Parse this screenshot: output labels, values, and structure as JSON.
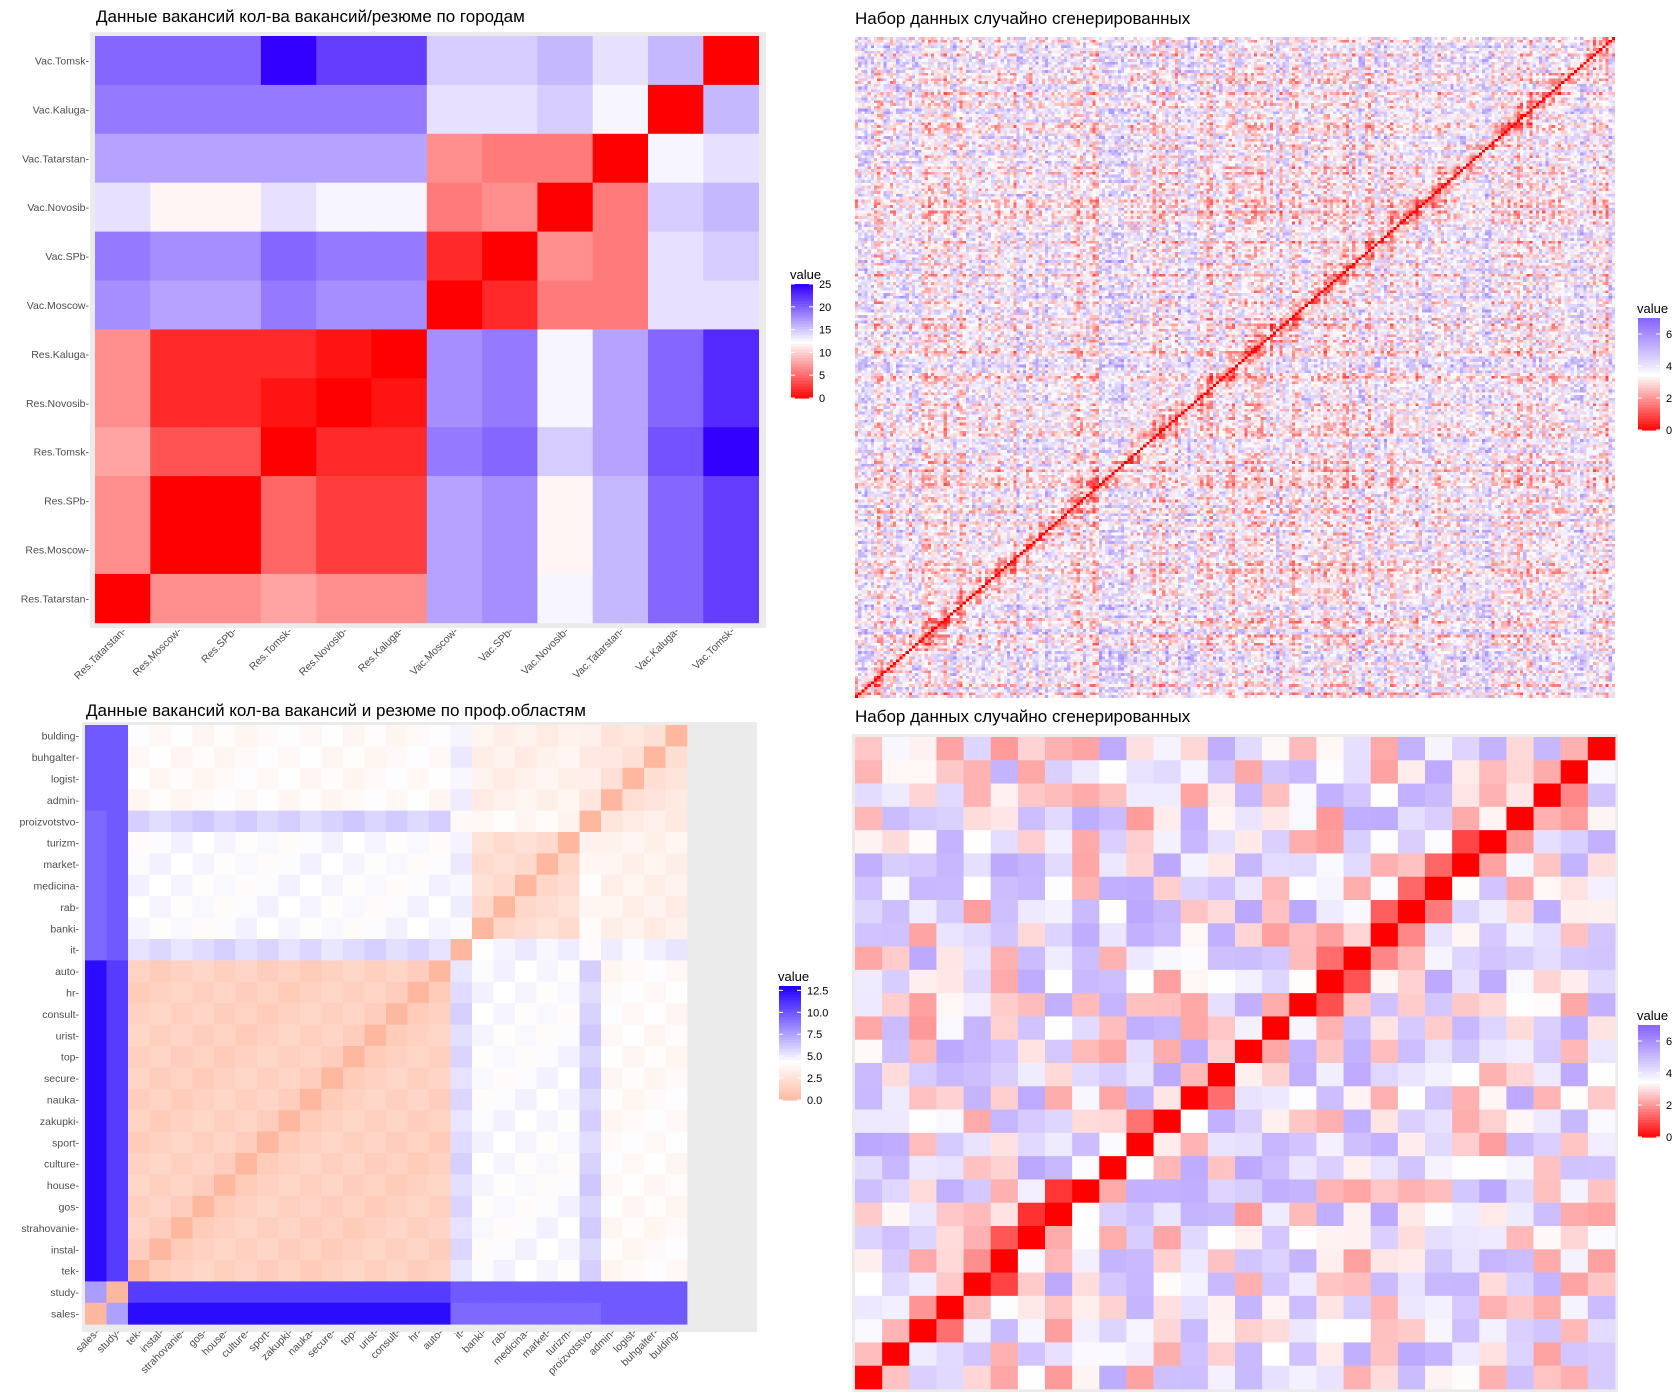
{
  "chart_data": [
    {
      "id": "cities",
      "type": "heatmap",
      "title": "Данные вакансий кол-ва вакансий/резюме по городам",
      "x_labels": [
        "Res.Tatarstan",
        "Res.Moscow",
        "Res.SPb",
        "Res.Tomsk",
        "Res.Novosib",
        "Res.Kaluga",
        "Vac.Moscow",
        "Vac.SPb",
        "Vac.Novosib",
        "Vac.Tatarstan",
        "Vac.Kaluga",
        "Vac.Tomsk"
      ],
      "y_labels_top_to_bottom": [
        "Vac.Tomsk",
        "Vac.Kaluga",
        "Vac.Tatarstan",
        "Vac.Novosib",
        "Vac.SPb",
        "Vac.Moscow",
        "Res.Kaluga",
        "Res.Novosib",
        "Res.Tomsk",
        "Res.SPb",
        "Res.Moscow",
        "Res.Tatarstan"
      ],
      "values": [
        [
          20,
          20,
          20,
          25,
          22,
          22,
          15,
          15,
          16,
          14,
          16,
          0
        ],
        [
          19,
          19,
          19,
          19,
          19,
          19,
          14,
          14,
          15,
          13,
          0,
          16
        ],
        [
          17,
          17,
          17,
          17,
          17,
          17,
          7,
          6,
          6,
          0,
          13,
          14
        ],
        [
          14,
          12,
          12,
          14,
          13,
          13,
          6,
          7,
          0,
          6,
          15,
          16
        ],
        [
          19,
          18,
          18,
          20,
          19,
          19,
          2,
          0,
          7,
          6,
          14,
          15
        ],
        [
          18,
          17,
          17,
          19,
          18,
          18,
          0,
          2,
          6,
          6,
          14,
          14
        ],
        [
          7,
          2,
          2,
          2,
          1,
          0,
          18,
          19,
          13,
          17,
          20,
          23
        ],
        [
          7,
          2,
          2,
          1,
          0,
          1,
          18,
          19,
          13,
          17,
          20,
          23
        ],
        [
          8,
          4,
          4,
          0,
          2,
          2,
          19,
          20,
          15,
          17,
          21,
          25
        ],
        [
          7,
          0,
          0,
          5,
          3,
          3,
          17,
          18,
          12,
          16,
          20,
          22
        ],
        [
          7,
          0,
          0,
          5,
          3,
          3,
          17,
          18,
          12,
          16,
          20,
          22
        ],
        [
          0,
          7,
          7,
          8,
          7,
          7,
          17,
          18,
          13,
          16,
          20,
          22
        ]
      ],
      "legend": {
        "title": "value",
        "ticks": [
          "25",
          "20",
          "15",
          "10",
          "5",
          "0"
        ],
        "tick_values": [
          25,
          20,
          15,
          10,
          5,
          0
        ],
        "min": 0,
        "max": 25,
        "mid": 12.5,
        "low": "#ff0000",
        "mid_color": "#ffffff",
        "high": "#3300ff"
      }
    },
    {
      "id": "random-large",
      "type": "heatmap",
      "title": "Набор данных случайно сгенерированных",
      "grid_size": 240,
      "legend": {
        "title": "value",
        "ticks": [
          "6",
          "4",
          "2",
          "0"
        ],
        "tick_values": [
          6,
          4,
          2,
          0
        ],
        "min": 0,
        "max": 7,
        "mid": 3.5,
        "low": "#ff0000",
        "mid_color": "#ffffff",
        "high": "#8866ff"
      }
    },
    {
      "id": "professions",
      "type": "heatmap",
      "title": "Данные вакансий кол-ва вакансий и резюме по проф.областям",
      "x_labels": [
        "sales",
        "study",
        "tek",
        "instal",
        "strahovanie",
        "gos",
        "house",
        "culture",
        "sport",
        "zakupki",
        "nauka",
        "secure",
        "top",
        "urist",
        "consult",
        "hr",
        "auto",
        "it",
        "banki",
        "rab",
        "medicina",
        "market",
        "turizm",
        "proizvotstvo",
        "admin",
        "logist",
        "buhgalter",
        "bulding"
      ],
      "y_labels_top_to_bottom": [
        "bulding",
        "buhgalter",
        "logist",
        "admin",
        "proizvotstvo",
        "turizm",
        "market",
        "medicina",
        "rab",
        "banki",
        "it",
        "auto",
        "hr",
        "consult",
        "urist",
        "top",
        "secure",
        "nauka",
        "zakupki",
        "sport",
        "culture",
        "house",
        "gos",
        "strahovanie",
        "instal",
        "tek",
        "study",
        "sales"
      ],
      "legend": {
        "title": "value",
        "ticks": [
          "12.5",
          "10.0",
          "7.5",
          "5.0",
          "2.5",
          "0.0"
        ],
        "tick_values": [
          12.5,
          10,
          7.5,
          5,
          2.5,
          0
        ],
        "min": 0,
        "max": 13,
        "mid": 4.5,
        "low": "#ffb8a0",
        "mid_color": "#ffffff",
        "high": "#2200ff"
      }
    },
    {
      "id": "random-small",
      "type": "heatmap",
      "title": "Набор данных случайно сгенерированных",
      "grid_size": 28,
      "legend": {
        "title": "value",
        "ticks": [
          "6",
          "4",
          "2",
          "0"
        ],
        "tick_values": [
          6,
          4,
          2,
          0
        ],
        "min": 0,
        "max": 7,
        "mid": 3.5,
        "low": "#ff0000",
        "mid_color": "#ffffff",
        "high": "#8866ff"
      }
    }
  ]
}
